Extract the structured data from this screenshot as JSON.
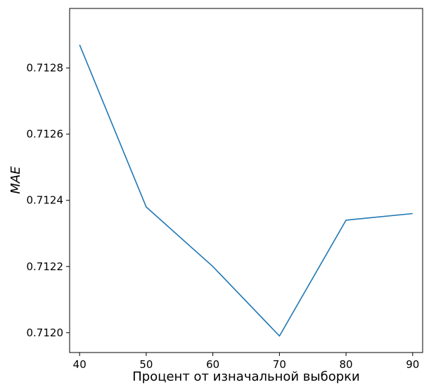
{
  "chart_data": {
    "type": "line",
    "xlabel": "Процент от изначальной выборки",
    "ylabel": "MAE",
    "x": [
      40,
      50,
      60,
      70,
      80,
      90
    ],
    "series": [
      {
        "values": [
          0.71287,
          0.71238,
          0.7122,
          0.71199,
          0.71234,
          0.71236
        ],
        "color": "#1f77b4"
      }
    ],
    "xlim": [
      38.5,
      91.5
    ],
    "ylim": [
      0.71194,
      0.71298
    ],
    "xticks": [
      40,
      50,
      60,
      70,
      80,
      90
    ],
    "xtick_labels": [
      "40",
      "50",
      "60",
      "70",
      "80",
      "90"
    ],
    "yticks": [
      0.712,
      0.7122,
      0.7124,
      0.7126,
      0.7128
    ],
    "ytick_labels": [
      "0.7120",
      "0.7122",
      "0.7124",
      "0.7126",
      "0.7128"
    ],
    "grid": false,
    "legend": false
  }
}
